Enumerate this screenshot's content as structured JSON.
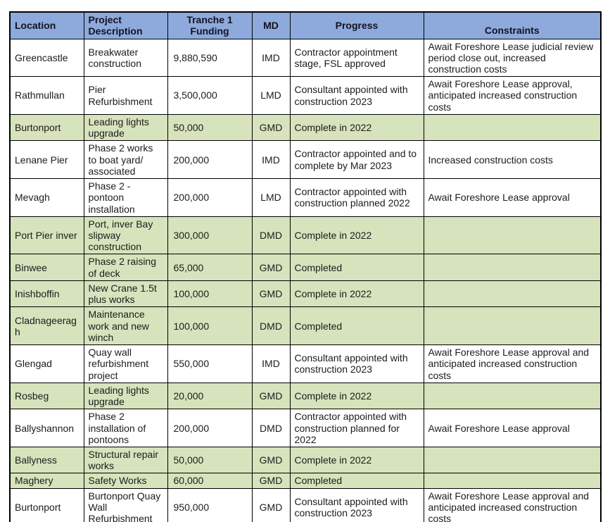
{
  "table": {
    "header_bg": "#8eaadc",
    "shaded_row_bg": "#d6e3bc",
    "border_color": "#000000",
    "columns": [
      {
        "key": "location",
        "label": "Location"
      },
      {
        "key": "description",
        "label": "Project Description"
      },
      {
        "key": "funding",
        "label": "Tranche 1 Funding"
      },
      {
        "key": "md",
        "label": "MD"
      },
      {
        "key": "progress",
        "label": "Progress"
      },
      {
        "key": "constraints",
        "label": "Constraints"
      }
    ],
    "rows": [
      {
        "shaded": false,
        "location": "Greencastle",
        "description": "Breakwater construction",
        "funding": "9,880,590",
        "md": "IMD",
        "progress": "Contractor appointment stage, FSL approved",
        "constraints": "Await Foreshore Lease judicial review period close out, increased construction costs"
      },
      {
        "shaded": false,
        "location": "Rathmullan",
        "description": "Pier Refurbishment",
        "funding": "3,500,000",
        "md": "LMD",
        "progress": "Consultant appointed with construction 2023",
        "constraints": "Await Foreshore Lease approval, anticipated increased construction costs"
      },
      {
        "shaded": true,
        "location": "Burtonport",
        "description": "Leading lights upgrade",
        "funding": "50,000",
        "md": "GMD",
        "progress": "Complete in 2022",
        "constraints": ""
      },
      {
        "shaded": false,
        "location": "Lenane Pier",
        "description": "Phase 2 works to boat yard/ associated",
        "funding": "200,000",
        "md": "IMD",
        "progress": "Contractor appointed and to complete by Mar 2023",
        "constraints": "Increased construction costs"
      },
      {
        "shaded": false,
        "location": "Mevagh",
        "description": "Phase 2 - pontoon installation",
        "funding": "200,000",
        "md": "LMD",
        "progress": "Contractor appointed with construction planned 2022",
        "constraints": "Await Foreshore Lease approval"
      },
      {
        "shaded": true,
        "location": "Port Pier inver",
        "description": "Port, inver Bay slipway construction",
        "funding": "300,000",
        "md": "DMD",
        "progress": "Complete in 2022",
        "constraints": ""
      },
      {
        "shaded": true,
        "location": "Binwee",
        "description": "Phase 2 raising of deck",
        "funding": "65,000",
        "md": "GMD",
        "progress": "Completed",
        "constraints": ""
      },
      {
        "shaded": true,
        "location": "Inishboffin",
        "description": "New Crane 1.5t plus works",
        "funding": "100,000",
        "md": "GMD",
        "progress": "Complete in 2022",
        "constraints": ""
      },
      {
        "shaded": true,
        "location": "Cladnageeragh",
        "description": "Maintenance work and new winch",
        "funding": "100,000",
        "md": "DMD",
        "progress": "Completed",
        "constraints": ""
      },
      {
        "shaded": false,
        "location": "Glengad",
        "description": "Quay wall refurbishment project",
        "funding": "550,000",
        "md": "IMD",
        "progress": "Consultant appointed with construction 2023",
        "constraints": "Await Foreshore Lease approval and anticipated increased construction costs"
      },
      {
        "shaded": true,
        "location": "Rosbeg",
        "description": "Leading lights upgrade",
        "funding": "20,000",
        "md": "GMD",
        "progress": "Complete in 2022",
        "constraints": ""
      },
      {
        "shaded": false,
        "location": "Ballyshannon",
        "description": "Phase 2 installation of pontoons",
        "funding": "200,000",
        "md": "DMD",
        "progress": "Contractor appointed with construction planned for 2022",
        "constraints": "Await Foreshore Lease approval"
      },
      {
        "shaded": true,
        "location": "Ballyness",
        "description": "Structural repair works",
        "funding": "50,000",
        "md": "GMD",
        "progress": "Complete in 2022",
        "constraints": ""
      },
      {
        "shaded": true,
        "location": "Maghery",
        "description": "Safety Works",
        "funding": "60,000",
        "md": "GMD",
        "progress": "Completed",
        "constraints": ""
      },
      {
        "shaded": false,
        "location": "Burtonport",
        "description": "Burtonport Quay Wall Refurbishment",
        "funding": "950,000",
        "md": "GMD",
        "progress": "Consultant appointed with construction 2023",
        "constraints": "Await Foreshore Lease approval and anticipated increased construction costs"
      }
    ]
  }
}
